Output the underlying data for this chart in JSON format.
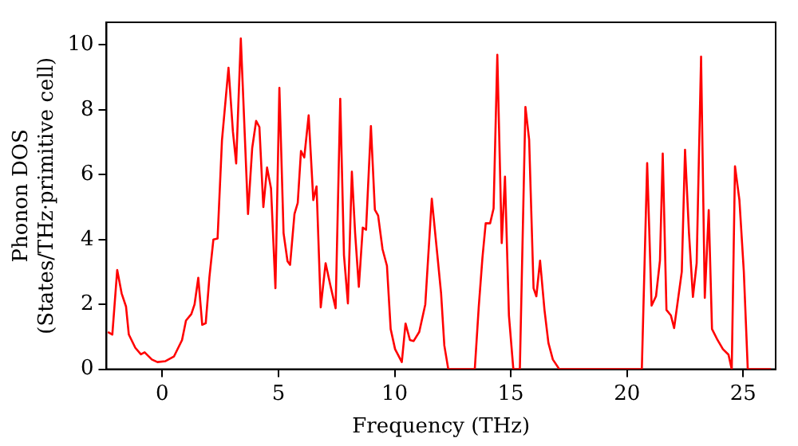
{
  "chart_data": {
    "type": "line",
    "xlabel": "Frequency (THz)",
    "ylabel": "Phonon DOS\n(States/THz·primitive cell)",
    "xlim": [
      -2.4,
      26.4
    ],
    "ylim": [
      0,
      10.7
    ],
    "xticks": [
      0,
      5,
      10,
      15,
      20,
      25
    ],
    "yticks": [
      0,
      2,
      4,
      6,
      8,
      10
    ],
    "grid": false,
    "legend": false,
    "marker": "none",
    "line_style": "solid",
    "series": [
      {
        "color": "#ff0000",
        "x": [
          -2.34,
          -2.15,
          -1.94,
          -1.75,
          -1.56,
          -1.44,
          -1.16,
          -0.92,
          -0.76,
          -0.45,
          -0.21,
          0.14,
          0.5,
          0.85,
          1.02,
          1.25,
          1.39,
          1.55,
          1.72,
          1.87,
          2.03,
          2.2,
          2.38,
          2.57,
          2.85,
          3.04,
          3.18,
          3.38,
          3.69,
          3.87,
          4.04,
          4.18,
          4.35,
          4.51,
          4.68,
          4.87,
          5.04,
          5.22,
          5.39,
          5.5,
          5.69,
          5.83,
          5.97,
          6.11,
          6.3,
          6.5,
          6.64,
          6.82,
          7.03,
          7.23,
          7.46,
          7.66,
          7.82,
          7.99,
          8.16,
          8.3,
          8.46,
          8.63,
          8.77,
          8.98,
          9.15,
          9.29,
          9.48,
          9.67,
          9.83,
          10.02,
          10.31,
          10.47,
          10.66,
          10.82,
          11.06,
          11.32,
          11.6,
          11.84,
          12.0,
          12.14,
          12.31,
          13.45,
          13.62,
          13.78,
          13.92,
          14.11,
          14.26,
          14.42,
          14.61,
          14.75,
          14.92,
          15.11,
          15.39,
          15.63,
          15.79,
          15.98,
          16.1,
          16.26,
          16.45,
          16.62,
          16.81,
          17.09,
          20.64,
          20.87,
          21.06,
          21.25,
          21.42,
          21.54,
          21.7,
          21.89,
          22.03,
          22.36,
          22.5,
          22.67,
          22.84,
          23.0,
          23.19,
          23.35,
          23.52,
          23.66,
          23.9,
          24.13,
          24.37,
          24.51,
          24.65,
          24.84,
          25.03,
          25.2,
          26.2
        ],
        "values": [
          1.15,
          1.07,
          3.06,
          2.34,
          1.93,
          1.07,
          0.66,
          0.46,
          0.52,
          0.3,
          0.22,
          0.25,
          0.39,
          0.9,
          1.5,
          1.7,
          2.0,
          2.82,
          1.37,
          1.42,
          2.85,
          4.0,
          4.03,
          7.07,
          9.3,
          7.33,
          6.35,
          10.2,
          4.79,
          6.82,
          7.66,
          7.47,
          5.0,
          6.22,
          5.58,
          2.5,
          8.68,
          4.2,
          3.33,
          3.22,
          4.79,
          5.13,
          6.73,
          6.53,
          7.83,
          5.22,
          5.64,
          1.91,
          3.27,
          2.6,
          1.88,
          8.34,
          3.52,
          2.03,
          6.09,
          4.2,
          2.54,
          4.37,
          4.3,
          7.5,
          4.92,
          4.74,
          3.7,
          3.19,
          1.24,
          0.62,
          0.22,
          1.41,
          0.9,
          0.87,
          1.15,
          2.0,
          5.26,
          3.52,
          2.34,
          0.73,
          0,
          0,
          1.91,
          3.44,
          4.5,
          4.5,
          4.96,
          9.7,
          3.89,
          5.94,
          1.66,
          0,
          0,
          8.09,
          7.08,
          2.5,
          2.25,
          3.35,
          1.83,
          0.81,
          0.3,
          0,
          0,
          6.36,
          1.96,
          2.25,
          3.35,
          6.65,
          1.83,
          1.66,
          1.27,
          3.01,
          6.77,
          4.2,
          2.23,
          3.27,
          9.64,
          2.2,
          4.91,
          1.24,
          0.9,
          0.62,
          0.45,
          0,
          6.26,
          5.22,
          3.01,
          0,
          0
        ]
      }
    ]
  }
}
